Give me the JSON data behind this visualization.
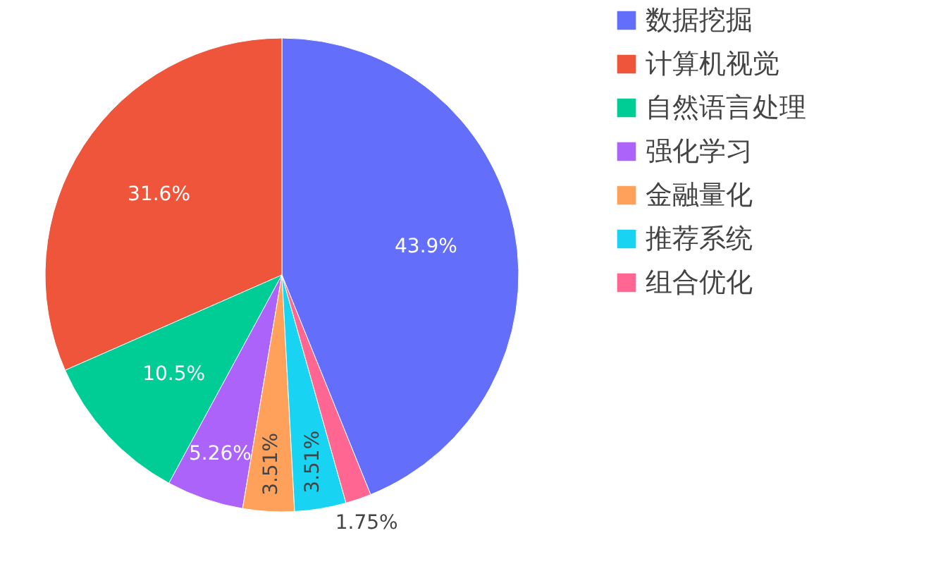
{
  "chart_data": {
    "type": "pie",
    "categories": [
      "数据挖掘",
      "计算机视觉",
      "自然语言处理",
      "强化学习",
      "金融量化",
      "推荐系统",
      "组合优化"
    ],
    "values": [
      43.9,
      31.6,
      10.5,
      5.26,
      3.51,
      3.51,
      1.75
    ],
    "colors": [
      "#636efa",
      "#ef553b",
      "#00cc96",
      "#ab63fa",
      "#ffa15a",
      "#19d3f3",
      "#ff6692"
    ],
    "value_labels": [
      "43.9%",
      "31.6%",
      "10.5%",
      "5.26%",
      "3.51%",
      "3.51%",
      "1.75%"
    ],
    "legend": "top right"
  }
}
